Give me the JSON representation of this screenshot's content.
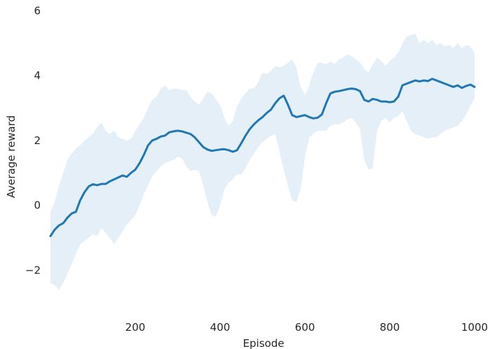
{
  "chart_data": {
    "type": "line",
    "title": "",
    "xlabel": "Episode",
    "ylabel": "Average reward",
    "xlim": [
      0,
      1000
    ],
    "ylim": [
      -3.2,
      6.2
    ],
    "x_ticks": [
      200,
      400,
      600,
      800,
      1000
    ],
    "x_tick_labels": [
      "200",
      "400",
      "600",
      "800",
      "1000"
    ],
    "y_ticks": [
      -2,
      0,
      2,
      4,
      6
    ],
    "y_tick_labels": [
      "−2",
      "0",
      "2",
      "4",
      "6"
    ],
    "grid": false,
    "legend": "none",
    "colors": {
      "line": "#1f77b4",
      "band": "#c6dcf0"
    },
    "series": [
      {
        "x": [
          0,
          10,
          20,
          30,
          40,
          50,
          60,
          70,
          80,
          90,
          100,
          110,
          120,
          130,
          140,
          150,
          160,
          170,
          180,
          190,
          200,
          210,
          220,
          230,
          240,
          250,
          260,
          270,
          280,
          290,
          300,
          310,
          320,
          330,
          340,
          350,
          360,
          370,
          380,
          390,
          400,
          410,
          420,
          430,
          440,
          450,
          460,
          470,
          480,
          490,
          500,
          510,
          520,
          530,
          540,
          550,
          560,
          570,
          580,
          590,
          600,
          610,
          620,
          630,
          640,
          650,
          660,
          670,
          680,
          690,
          700,
          710,
          720,
          730,
          740,
          750,
          760,
          770,
          780,
          790,
          800,
          810,
          820,
          830,
          840,
          850,
          860,
          870,
          880,
          890,
          900,
          910,
          920,
          930,
          940,
          950,
          960,
          970,
          980,
          990,
          1000
        ],
        "mean": [
          -0.95,
          -0.75,
          -0.62,
          -0.55,
          -0.38,
          -0.25,
          -0.2,
          0.15,
          0.4,
          0.58,
          0.65,
          0.62,
          0.66,
          0.66,
          0.74,
          0.8,
          0.86,
          0.92,
          0.88,
          1.0,
          1.1,
          1.3,
          1.55,
          1.85,
          2.0,
          2.05,
          2.12,
          2.15,
          2.25,
          2.28,
          2.3,
          2.28,
          2.24,
          2.2,
          2.1,
          1.95,
          1.8,
          1.72,
          1.68,
          1.7,
          1.72,
          1.73,
          1.7,
          1.65,
          1.7,
          1.92,
          2.15,
          2.35,
          2.5,
          2.62,
          2.72,
          2.85,
          2.95,
          3.15,
          3.3,
          3.38,
          3.1,
          2.78,
          2.72,
          2.75,
          2.78,
          2.72,
          2.68,
          2.7,
          2.8,
          3.15,
          3.45,
          3.5,
          3.52,
          3.55,
          3.58,
          3.6,
          3.58,
          3.52,
          3.25,
          3.2,
          3.28,
          3.25,
          3.2,
          3.2,
          3.18,
          3.2,
          3.35,
          3.7,
          3.75,
          3.8,
          3.85,
          3.82,
          3.85,
          3.83,
          3.9,
          3.85,
          3.8,
          3.75,
          3.7,
          3.65,
          3.7,
          3.62,
          3.68,
          3.72,
          3.65
        ],
        "upper": [
          -0.2,
          0.1,
          0.6,
          1.0,
          1.4,
          1.6,
          1.75,
          1.85,
          2.0,
          2.1,
          2.2,
          2.4,
          2.55,
          2.3,
          2.2,
          2.3,
          2.1,
          2.05,
          2.0,
          2.05,
          2.3,
          2.5,
          2.7,
          3.0,
          3.25,
          3.35,
          3.6,
          3.7,
          3.55,
          3.6,
          3.6,
          3.55,
          3.55,
          3.35,
          3.2,
          3.1,
          3.3,
          3.5,
          3.45,
          3.25,
          3.1,
          2.7,
          2.45,
          2.6,
          3.05,
          3.3,
          3.45,
          3.6,
          3.6,
          3.8,
          4.1,
          4.05,
          4.15,
          4.3,
          4.25,
          4.3,
          4.4,
          4.5,
          4.25,
          3.65,
          3.4,
          3.7,
          4.1,
          4.4,
          4.4,
          4.35,
          4.45,
          4.35,
          4.5,
          4.55,
          4.65,
          4.6,
          4.5,
          4.4,
          4.2,
          4.1,
          4.35,
          4.55,
          4.45,
          4.3,
          4.45,
          4.55,
          4.7,
          5.0,
          5.2,
          5.25,
          5.3,
          5.0,
          5.1,
          5.0,
          5.1,
          4.95,
          5.0,
          4.9,
          4.95,
          4.85,
          5.0,
          4.85,
          4.95,
          4.9,
          4.7
        ],
        "lower": [
          -2.4,
          -2.45,
          -2.6,
          -2.4,
          -2.1,
          -1.8,
          -1.5,
          -1.2,
          -1.1,
          -1.0,
          -0.9,
          -0.95,
          -0.7,
          -0.85,
          -1.0,
          -1.2,
          -1.0,
          -0.8,
          -0.6,
          -0.45,
          -0.3,
          0.0,
          0.35,
          0.6,
          0.9,
          1.05,
          1.2,
          1.3,
          1.35,
          1.4,
          1.5,
          1.45,
          1.2,
          1.05,
          1.1,
          1.05,
          0.6,
          0.1,
          -0.3,
          -0.35,
          0.0,
          0.5,
          0.7,
          0.8,
          0.95,
          0.95,
          1.15,
          1.4,
          1.6,
          1.8,
          1.95,
          2.05,
          2.15,
          2.2,
          1.65,
          1.1,
          0.6,
          0.15,
          0.1,
          0.5,
          1.5,
          2.1,
          2.2,
          2.3,
          2.3,
          2.3,
          2.45,
          2.5,
          2.5,
          2.55,
          2.65,
          2.7,
          2.55,
          2.35,
          1.4,
          1.1,
          1.15,
          2.3,
          2.6,
          2.7,
          2.55,
          2.7,
          2.75,
          2.9,
          2.6,
          2.3,
          2.2,
          2.15,
          2.1,
          2.05,
          2.1,
          2.1,
          2.2,
          2.3,
          2.35,
          2.4,
          2.45,
          2.6,
          2.8,
          3.05,
          3.3
        ]
      }
    ]
  }
}
